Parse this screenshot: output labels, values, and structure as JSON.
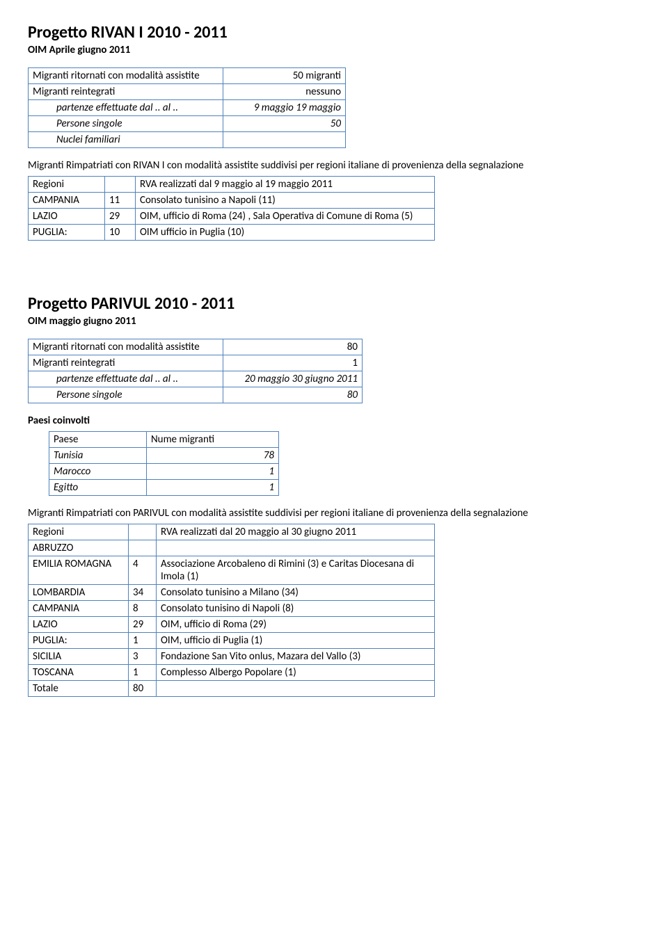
{
  "project1": {
    "title": "Progetto RIVAN I  2010 - 2011",
    "subtitle": "OIM Aprile giugno 2011",
    "table1": {
      "col1_width": 280,
      "col2_width": 176,
      "rows": [
        {
          "l": "Migranti ritornati con modalità assistite",
          "r": "50 migranti",
          "l_italic": false,
          "r_align": "right",
          "indent": false
        },
        {
          "l": "Migranti  reintegrati",
          "r": "nessuno",
          "l_italic": false,
          "r_align": "right",
          "indent": false
        },
        {
          "l": "partenze effettuate dal .. al ..",
          "r": "9 maggio 19 maggio",
          "l_italic": true,
          "r_align": "right",
          "indent": true
        },
        {
          "l": "Persone singole",
          "r": "50",
          "l_italic": true,
          "r_align": "right",
          "indent": true
        },
        {
          "l": "Nuclei familiari",
          "r": "",
          "l_italic": true,
          "r_align": "right",
          "indent": true
        }
      ]
    },
    "para1": "Migranti Rimpatriati con RIVAN I con modalità assistite suddivisi per regioni italiane di provenienza della segnalazione",
    "table2": {
      "col1_width": 110,
      "col2_width": 44,
      "col3_width": 430,
      "header": {
        "c1": "Regioni",
        "c2": "",
        "c3": "RVA realizzati dal 9 maggio al 19 maggio 2011"
      },
      "rows": [
        {
          "c1": "CAMPANIA",
          "c2": "11",
          "c3": "Consolato tunisino a Napoli (11)"
        },
        {
          "c1": "LAZIO",
          "c2": "29",
          "c3": "OIM, ufficio di Roma (24) , Sala Operativa di Comune di Roma (5)"
        },
        {
          "c1": "PUGLIA:",
          "c2": "10",
          "c3": "OIM ufficio in Puglia (10)"
        }
      ]
    }
  },
  "project2": {
    "title": "Progetto PARIVUL   2010 - 2011",
    "subtitle": "OIM maggio giugno 2011",
    "table1": {
      "col1_width": 280,
      "col2_width": 200,
      "rows": [
        {
          "l": "Migranti ritornati con modalità assistite",
          "r": "80",
          "l_italic": false,
          "r_align": "right",
          "indent": false
        },
        {
          "l": "Migranti  reintegrati",
          "r": "1",
          "l_italic": false,
          "r_align": "right",
          "indent": false
        },
        {
          "l": "partenze effettuate dal .. al ..",
          "r": "20 maggio 30 giugno 2011",
          "l_italic": true,
          "r_align": "right",
          "indent": true
        },
        {
          "l": "Persone singole",
          "r": "80",
          "l_italic": true,
          "r_align": "right",
          "indent": true
        }
      ]
    },
    "paesi_title": "Paesi coinvolti",
    "paesi_table": {
      "col1_width": 140,
      "col2_width": 190,
      "header": {
        "c1": "Paese",
        "c2": "Nume migranti"
      },
      "rows": [
        {
          "c1": "Tunisia",
          "c2": "78"
        },
        {
          "c1": "Marocco",
          "c2": "1"
        },
        {
          "c1": "Egitto",
          "c2": "1"
        }
      ]
    },
    "para2": "Migranti Rimpatriati con PARIVUL con modalità assistite suddivisi per regioni italiane di provenienza della segnalazione",
    "table3": {
      "col1_width": 144,
      "col2_width": 40,
      "col3_width": 400,
      "header": {
        "c1": "Regioni",
        "c2": "",
        "c3": "RVA realizzati dal 20 maggio al 30 giugno 2011"
      },
      "rows": [
        {
          "c1": "ABRUZZO",
          "c2": "",
          "c3": ""
        },
        {
          "c1": "EMILIA ROMAGNA",
          "c2": "4",
          "c3": "Associazione Arcobaleno di Rimini (3) e Caritas Diocesana di Imola (1)"
        },
        {
          "c1": "LOMBARDIA",
          "c2": "34",
          "c3": "Consolato tunisino a Milano (34)"
        },
        {
          "c1": "CAMPANIA",
          "c2": "8",
          "c3": "Consolato tunisino di Napoli (8)"
        },
        {
          "c1": "LAZIO",
          "c2": "29",
          "c3": "OIM, ufficio di Roma (29)"
        },
        {
          "c1": "PUGLIA:",
          "c2": "1",
          "c3": "OIM, ufficio di Puglia (1)"
        },
        {
          "c1": "SICILIA",
          "c2": "3",
          "c3": "Fondazione San Vito onlus, Mazara del Vallo (3)"
        },
        {
          "c1": "TOSCANA",
          "c2": "1",
          "c3": "Complesso Albergo Popolare (1)"
        },
        {
          "c1": "Totale",
          "c2": "80",
          "c3": ""
        }
      ]
    }
  }
}
